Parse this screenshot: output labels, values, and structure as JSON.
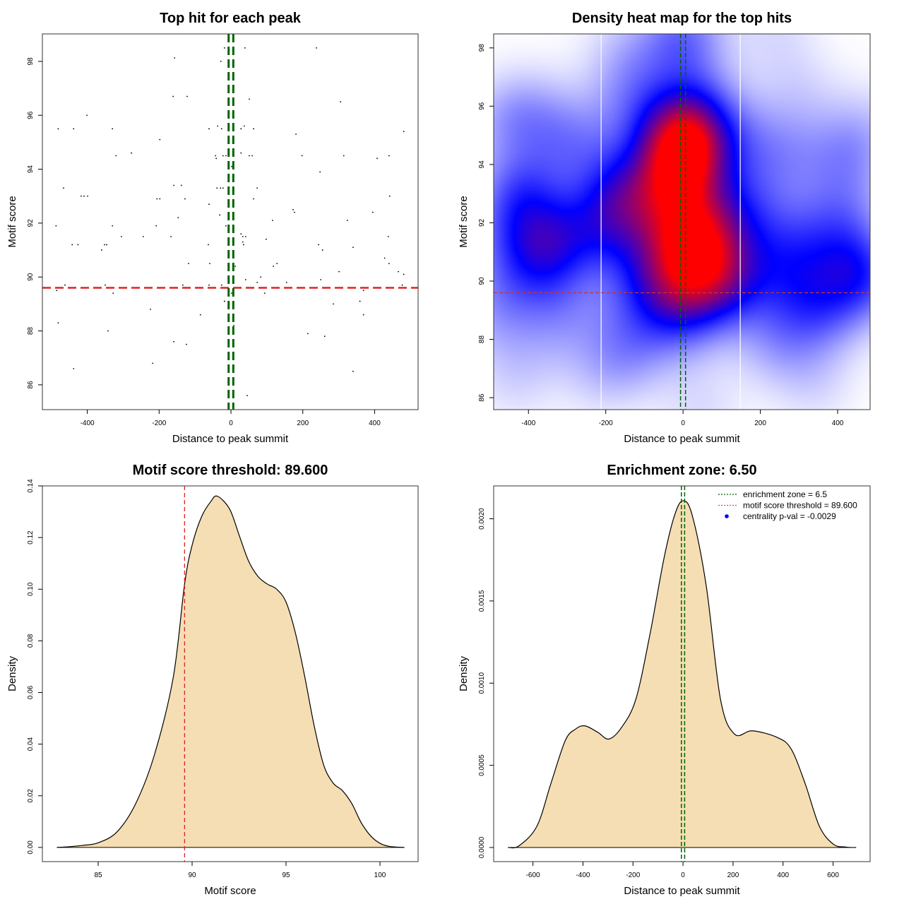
{
  "chart_data": [
    {
      "type": "scatter",
      "title": "Top hit for each peak",
      "xlabel": "Distance to peak summit",
      "ylabel": "Motif score",
      "xlim": [
        -525,
        521
      ],
      "ylim": [
        85.08,
        99.02
      ],
      "xticks": [
        -400,
        -200,
        0,
        200,
        400
      ],
      "yticks": [
        86,
        88,
        90,
        92,
        94,
        96,
        98
      ],
      "threshold_y": 89.6,
      "threshold_color": "#dd2222",
      "zone_x": [
        -6.5,
        6.5
      ],
      "zone_color": "#006400",
      "points": [
        [
          -157,
          98.13
        ],
        [
          -18,
          98.5
        ],
        [
          -6,
          98.5
        ],
        [
          39,
          98.5
        ],
        [
          238,
          98.5
        ],
        [
          -28,
          98.0
        ],
        [
          -161,
          96.7
        ],
        [
          -122,
          96.7
        ],
        [
          51,
          96.6
        ],
        [
          305,
          96.5
        ],
        [
          -401,
          96.0
        ],
        [
          -481,
          95.5
        ],
        [
          -438,
          95.5
        ],
        [
          -330,
          95.5
        ],
        [
          -61,
          95.5
        ],
        [
          -37,
          95.6
        ],
        [
          -26,
          95.5
        ],
        [
          28,
          95.5
        ],
        [
          37,
          95.6
        ],
        [
          63,
          95.5
        ],
        [
          481,
          95.4
        ],
        [
          -198,
          95.1
        ],
        [
          181,
          95.3
        ],
        [
          -277,
          94.6
        ],
        [
          -320,
          94.5
        ],
        [
          -43,
          94.5
        ],
        [
          -41,
          94.4
        ],
        [
          -22,
          94.5
        ],
        [
          -14,
          94.5
        ],
        [
          8,
          94.5
        ],
        [
          28,
          94.6
        ],
        [
          51,
          94.5
        ],
        [
          59,
          94.5
        ],
        [
          198,
          94.5
        ],
        [
          314,
          94.5
        ],
        [
          407,
          94.4
        ],
        [
          440,
          94.5
        ],
        [
          2,
          94.1
        ],
        [
          248,
          93.9
        ],
        [
          -466,
          93.3
        ],
        [
          -417,
          93.0
        ],
        [
          -409,
          93.0
        ],
        [
          -399,
          93.0
        ],
        [
          -206,
          92.9
        ],
        [
          -198,
          92.9
        ],
        [
          -159,
          93.4
        ],
        [
          -138,
          93.4
        ],
        [
          -128,
          92.9
        ],
        [
          -39,
          93.3
        ],
        [
          -29,
          93.3
        ],
        [
          -22,
          93.3
        ],
        [
          63,
          92.9
        ],
        [
          73,
          93.3
        ],
        [
          442,
          93.0
        ],
        [
          -61,
          92.7
        ],
        [
          173,
          92.5
        ],
        [
          177,
          92.4
        ],
        [
          395,
          92.4
        ],
        [
          -147,
          92.2
        ],
        [
          -31,
          92.3
        ],
        [
          -487,
          91.9
        ],
        [
          -208,
          91.9
        ],
        [
          -330,
          91.9
        ],
        [
          -14,
          91.9
        ],
        [
          116,
          92.1
        ],
        [
          324,
          92.1
        ],
        [
          -244,
          91.5
        ],
        [
          -305,
          91.5
        ],
        [
          -167,
          91.5
        ],
        [
          28,
          91.6
        ],
        [
          33,
          91.5
        ],
        [
          41,
          91.5
        ],
        [
          98,
          91.4
        ],
        [
          438,
          91.5
        ],
        [
          -442,
          91.2
        ],
        [
          -426,
          91.2
        ],
        [
          -352,
          91.2
        ],
        [
          -346,
          91.2
        ],
        [
          -63,
          91.2
        ],
        [
          -8,
          91.2
        ],
        [
          33,
          91.3
        ],
        [
          35,
          91.2
        ],
        [
          244,
          91.2
        ],
        [
          340,
          91.1
        ],
        [
          255,
          91.0
        ],
        [
          -360,
          91.0
        ],
        [
          428,
          90.7
        ],
        [
          -118,
          90.5
        ],
        [
          -59,
          90.5
        ],
        [
          12,
          90.4
        ],
        [
          128,
          90.5
        ],
        [
          118,
          90.4
        ],
        [
          440,
          90.5
        ],
        [
          301,
          90.2
        ],
        [
          466,
          90.2
        ],
        [
          481,
          90.1
        ],
        [
          83,
          90.0
        ],
        [
          73,
          89.8
        ],
        [
          41,
          89.9
        ],
        [
          155,
          89.8
        ],
        [
          250,
          89.9
        ],
        [
          -462,
          89.7
        ],
        [
          -350,
          89.7
        ],
        [
          -134,
          89.7
        ],
        [
          -61,
          89.7
        ],
        [
          -26,
          89.7
        ],
        [
          477,
          89.7
        ],
        [
          -485,
          89.5
        ],
        [
          -328,
          89.4
        ],
        [
          2,
          89.4
        ],
        [
          94,
          89.4
        ],
        [
          369,
          89.5
        ],
        [
          359,
          89.1
        ],
        [
          -18,
          89.1
        ],
        [
          285,
          89.0
        ],
        [
          -224,
          88.8
        ],
        [
          -85,
          88.6
        ],
        [
          369,
          88.6
        ],
        [
          -481,
          88.3
        ],
        [
          -342,
          88.0
        ],
        [
          8,
          88.2
        ],
        [
          214,
          87.9
        ],
        [
          261,
          87.8
        ],
        [
          -159,
          87.6
        ],
        [
          -124,
          87.5
        ],
        [
          -438,
          86.6
        ],
        [
          -218,
          86.8
        ],
        [
          340,
          86.5
        ],
        [
          45,
          85.6
        ]
      ]
    },
    {
      "type": "heatmap",
      "title": "Density heat map for the top hits",
      "xlabel": "Distance to peak summit",
      "ylabel": "Motif score",
      "xlim": [
        -490,
        484
      ],
      "ylim": [
        85.59,
        98.48
      ],
      "xticks": [
        -400,
        -200,
        0,
        200,
        400
      ],
      "yticks": [
        86,
        88,
        90,
        92,
        94,
        96,
        98
      ],
      "colormap": [
        "#ffffff",
        "#0000ff",
        "#ff0000"
      ],
      "white_vlines": [
        -212,
        148
      ],
      "threshold_y": 89.6,
      "threshold_color": "#cc3333",
      "zone_x": [
        -6.5,
        6.5
      ],
      "zone_color": "#006400",
      "source": "points of panel 1"
    },
    {
      "type": "area",
      "title": "Motif score threshold: 89.600",
      "xlabel": "Motif score",
      "ylabel": "Density",
      "xlim": [
        82.03,
        102.03
      ],
      "ylim": [
        -0.0055,
        0.14
      ],
      "xticks": [
        85,
        90,
        95,
        100
      ],
      "yticks": [
        "0.00",
        "0.02",
        "0.04",
        "0.06",
        "0.08",
        "0.10",
        "0.12",
        "0.14"
      ],
      "fill": "#f5deb3",
      "threshold_x": 89.6,
      "threshold_color": "#dd2222",
      "x": [
        82.8,
        83.5,
        84.2,
        85,
        86,
        87,
        88,
        89,
        89.6,
        90,
        90.5,
        91,
        91.35,
        92,
        92.5,
        93,
        93.5,
        94,
        94.5,
        95,
        95.5,
        96,
        96.5,
        97,
        97.5,
        98,
        98.5,
        99,
        99.5,
        100,
        100.5,
        101.3
      ],
      "y": [
        0,
        0.0003,
        0.0008,
        0.0018,
        0.006,
        0.017,
        0.036,
        0.066,
        0.102,
        0.117,
        0.128,
        0.134,
        0.136,
        0.131,
        0.121,
        0.111,
        0.105,
        0.102,
        0.1,
        0.095,
        0.083,
        0.066,
        0.047,
        0.032,
        0.025,
        0.022,
        0.017,
        0.0096,
        0.0045,
        0.0016,
        0.0004,
        0
      ]
    },
    {
      "type": "area",
      "title": "Enrichment zone: 6.50",
      "xlabel": "Distance to peak summit",
      "ylabel": "Density",
      "xlim": [
        -757,
        748
      ],
      "ylim": [
        -8.6e-05,
        0.0022
      ],
      "xticks": [
        -600,
        -400,
        -200,
        0,
        200,
        400,
        600
      ],
      "yticks": [
        "0.0000",
        "0.0005",
        "0.0010",
        "0.0015",
        "0.0020"
      ],
      "fill": "#f5deb3",
      "zone_x": [
        -6.5,
        6.5
      ],
      "zone_color": "#006400",
      "x": [
        -700,
        -656,
        -584,
        -528,
        -471,
        -430,
        -392,
        -340,
        -296,
        -246,
        -189,
        -133,
        -76,
        -34,
        0,
        37,
        93,
        150,
        206,
        277,
        376,
        432,
        488,
        545,
        601,
        650,
        692
      ],
      "y": [
        0,
        1e-05,
        0.00013,
        0.00039,
        0.00065,
        0.00072,
        0.00074,
        0.0007,
        0.00066,
        0.00073,
        0.0009,
        0.00129,
        0.00176,
        0.00202,
        0.00211,
        0.00202,
        0.00159,
        0.0009,
        0.00069,
        0.00071,
        0.00067,
        0.0006,
        0.00039,
        0.00013,
        2e-05,
        3e-06,
        0
      ],
      "legend": [
        {
          "label": "enrichment zone = 6.5",
          "color": "#006400",
          "style": "dotted"
        },
        {
          "label": "motif score threshold = 89.600",
          "color": "#ff3333",
          "style": "dotted"
        },
        {
          "label": "centrality p-val = -0.0029",
          "color": "#0000ff",
          "style": "dot"
        }
      ]
    }
  ]
}
